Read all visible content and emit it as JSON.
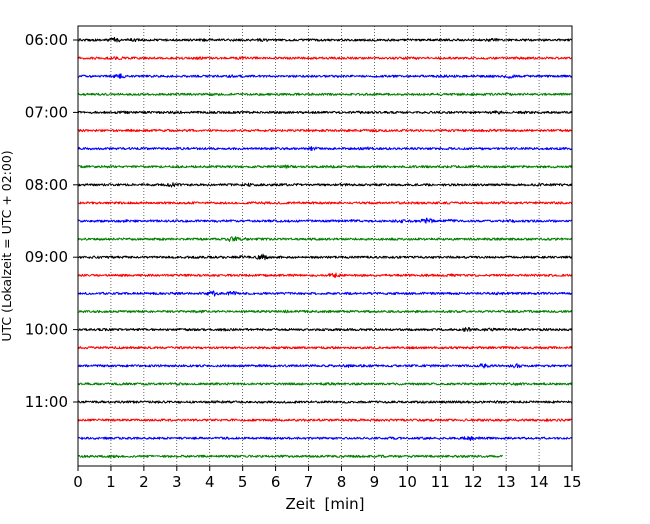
{
  "chart_data": {
    "type": "line",
    "subtype": "helicorder",
    "title": "",
    "xlabel": "Zeit  [min]",
    "ylabel": "UTC (Lokalzeit = UTC + 02:00)",
    "xlim": [
      0,
      15
    ],
    "xticks": [
      0,
      1,
      2,
      3,
      4,
      5,
      6,
      7,
      8,
      9,
      10,
      11,
      12,
      13,
      14,
      15
    ],
    "xtick_labels": [
      "0",
      "1",
      "2",
      "3",
      "4",
      "5",
      "6",
      "7",
      "8",
      "9",
      "10",
      "11",
      "12",
      "13",
      "14",
      "15"
    ],
    "ytick_labels": [
      "06:00",
      "07:00",
      "08:00",
      "09:00",
      "10:00",
      "11:00"
    ],
    "ytick_rows": [
      0,
      4,
      8,
      12,
      16,
      20
    ],
    "grid": "vertical dotted at each minute",
    "trace_colors": [
      "#000000",
      "#ff0000",
      "#0000ff",
      "#008000"
    ],
    "row_interval_min": 15,
    "rows": [
      {
        "start": "06:00",
        "bursts": [
          [
            1.1,
            3.2
          ],
          [
            1.7,
            1.8
          ],
          [
            3.8,
            1.5
          ],
          [
            5.6,
            1.8
          ],
          [
            12.6,
            1.8
          ]
        ]
      },
      {
        "start": "06:15",
        "bursts": [
          [
            1.2,
            1.6
          ],
          [
            3.6,
            1.6
          ],
          [
            4.9,
            1.4
          ],
          [
            10.3,
            1.4
          ],
          [
            13.5,
            1.5
          ]
        ]
      },
      {
        "start": "06:30",
        "bursts": [
          [
            1.3,
            2.4
          ],
          [
            4.7,
            1.5
          ],
          [
            11.1,
            1.4
          ],
          [
            13.1,
            2.4
          ]
        ]
      },
      {
        "start": "06:45",
        "bursts": [
          [
            4.0,
            1.3
          ],
          [
            11.0,
            1.3
          ],
          [
            12.0,
            1.2
          ],
          [
            13.0,
            1.5
          ]
        ]
      },
      {
        "start": "07:00",
        "bursts": [
          [
            1.4,
            1.7
          ],
          [
            3.0,
            1.5
          ],
          [
            5.0,
            1.5
          ],
          [
            8.5,
            1.4
          ],
          [
            12.7,
            1.9
          ],
          [
            13.6,
            1.4
          ]
        ]
      },
      {
        "start": "07:15",
        "bursts": [
          [
            9.0,
            1.6
          ],
          [
            2.0,
            1.3
          ],
          [
            12.5,
            1.4
          ]
        ]
      },
      {
        "start": "07:30",
        "bursts": [
          [
            7.1,
            2.0
          ],
          [
            8.8,
            1.8
          ],
          [
            12.3,
            1.5
          ]
        ]
      },
      {
        "start": "07:45",
        "bursts": [
          [
            6.3,
            1.8
          ],
          [
            7.7,
            1.5
          ],
          [
            12.0,
            1.4
          ]
        ]
      },
      {
        "start": "08:00",
        "bursts": [
          [
            2.9,
            2.6
          ],
          [
            5.2,
            1.8
          ],
          [
            6.6,
            1.4
          ],
          [
            8.0,
            1.6
          ],
          [
            11.0,
            1.4
          ],
          [
            14.0,
            1.5
          ]
        ]
      },
      {
        "start": "08:15",
        "bursts": [
          [
            5.7,
            1.5
          ],
          [
            9.7,
            1.5
          ],
          [
            12.8,
            1.5
          ]
        ]
      },
      {
        "start": "08:30",
        "bursts": [
          [
            1.4,
            1.5
          ],
          [
            8.3,
            1.8
          ],
          [
            9.8,
            2.0
          ],
          [
            10.6,
            3.2
          ],
          [
            11.3,
            1.8
          ],
          [
            13.2,
            1.5
          ]
        ]
      },
      {
        "start": "08:45",
        "bursts": [
          [
            4.7,
            3.2
          ],
          [
            5.0,
            1.7
          ],
          [
            12.8,
            1.4
          ]
        ]
      },
      {
        "start": "09:00",
        "bursts": [
          [
            4.9,
            1.7
          ],
          [
            5.6,
            3.2
          ],
          [
            11.3,
            1.4
          ]
        ]
      },
      {
        "start": "09:15",
        "bursts": [
          [
            7.8,
            2.6
          ],
          [
            11.3,
            1.4
          ]
        ]
      },
      {
        "start": "09:30",
        "bursts": [
          [
            4.1,
            3.2
          ],
          [
            4.7,
            2.4
          ],
          [
            12.8,
            1.5
          ]
        ]
      },
      {
        "start": "09:45",
        "bursts": [
          [
            3.7,
            1.5
          ],
          [
            6.3,
            1.5
          ],
          [
            10.4,
            1.4
          ]
        ]
      },
      {
        "start": "10:00",
        "bursts": [
          [
            1.0,
            1.3
          ],
          [
            4.5,
            1.5
          ],
          [
            11.8,
            2.4
          ],
          [
            12.5,
            1.8
          ]
        ]
      },
      {
        "start": "10:15",
        "bursts": [
          [
            12.7,
            1.6
          ],
          [
            7.7,
            1.3
          ],
          [
            14.2,
            1.4
          ]
        ]
      },
      {
        "start": "10:30",
        "bursts": [
          [
            8.2,
            1.8
          ],
          [
            12.3,
            2.4
          ],
          [
            13.3,
            2.4
          ]
        ]
      },
      {
        "start": "10:45",
        "bursts": [
          [
            3.0,
            1.5
          ],
          [
            7.6,
            1.5
          ],
          [
            13.3,
            1.4
          ]
        ]
      },
      {
        "start": "11:00",
        "bursts": [
          [
            4.2,
            1.3
          ],
          [
            12.8,
            1.4
          ]
        ]
      },
      {
        "start": "11:15",
        "bursts": [
          [
            6.0,
            1.3
          ],
          [
            9.0,
            1.3
          ],
          [
            14.4,
            1.4
          ]
        ]
      },
      {
        "start": "11:30",
        "bursts": [
          [
            9.6,
            1.5
          ],
          [
            11.9,
            2.6
          ],
          [
            12.3,
            1.5
          ]
        ]
      },
      {
        "start": "11:45",
        "end_min": 12.9,
        "bursts": [
          [
            1.2,
            1.5
          ],
          [
            6.2,
            1.3
          ],
          [
            9.2,
            1.3
          ]
        ]
      }
    ]
  }
}
